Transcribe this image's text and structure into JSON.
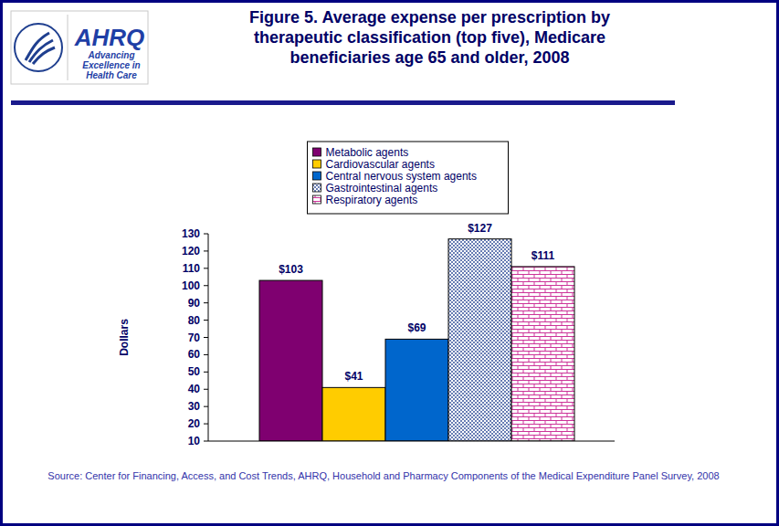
{
  "logo": {
    "name": "AHRQ",
    "tagline": "Advancing Excellence in Health Care"
  },
  "chart_data": {
    "type": "bar",
    "title": "Figure 5. Average expense per prescription by therapeutic classification (top five), Medicare beneficiaries age 65 and older, 2008",
    "y_label": "Dollars",
    "source": "Source: Center for Financing, Access, and Cost Trends, AHRQ, Household and Pharmacy Components of the Medical Expenditure Panel Survey, 2008",
    "categories": [
      "Metabolic agents",
      "Cardiovascular agents",
      "Central nervous system agents",
      "Gastrointestinal agents",
      "Respiratory agents"
    ],
    "values": [
      103,
      41,
      69,
      127,
      111
    ],
    "value_labels": [
      "$103",
      "$41",
      "$69",
      "$127",
      "$111"
    ],
    "colors": [
      "#7f0070",
      "#ffcc00",
      "#0066cc",
      "#1f3f8f",
      "#cc3399"
    ],
    "ylim": [
      10,
      130
    ],
    "yticks": [
      10,
      20,
      30,
      40,
      50,
      60,
      70,
      80,
      90,
      100,
      110,
      120,
      130
    ],
    "grid": false,
    "legend": "top",
    "data_labels": true,
    "tick_labels": "y"
  }
}
